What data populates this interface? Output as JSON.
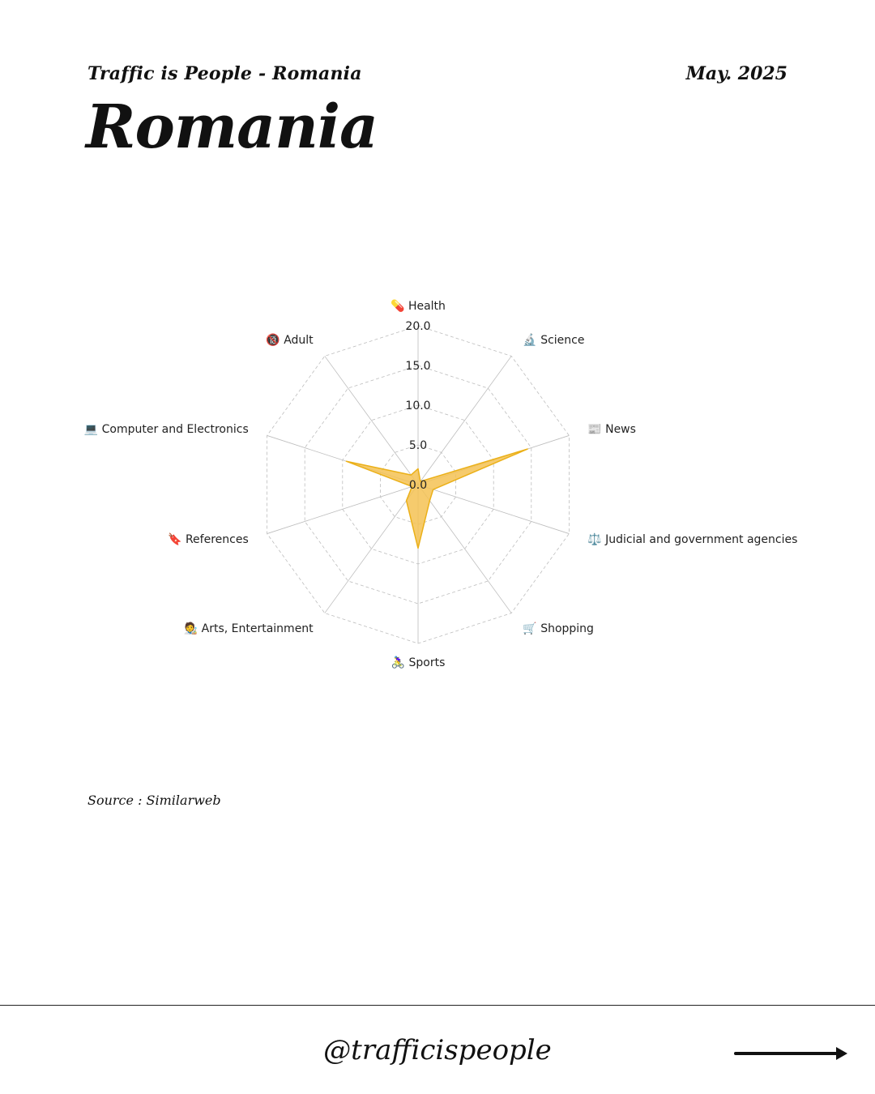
{
  "header": {
    "series": "Traffic is People - Romania",
    "date": "May. 2025"
  },
  "title": "Romania",
  "source": "Source : Similarweb",
  "footer": {
    "handle": "@trafficispeople",
    "arrow_icon": "arrow-right-icon"
  },
  "colors": {
    "fill": "#F5C254",
    "stroke": "#EBB018",
    "grid": "#BDBDBD"
  },
  "chart_data": {
    "type": "radar",
    "categories": [
      "💊 Health",
      "🔬 Science",
      "📰 News",
      "⚖️ Judicial and government agencies",
      "🛒 Shopping",
      "🚴‍♀️ Sports",
      "🧑‍🎨 Arts, Entertainment",
      "🔖 References",
      "💻 Computer and Electronics",
      "🔞 Adult"
    ],
    "values": [
      2.0,
      0.5,
      14.5,
      2.0,
      2.5,
      8.0,
      2.5,
      0.8,
      9.5,
      1.5
    ],
    "ticks": [
      "0.0",
      "5.0",
      "10.0",
      "15.0",
      "20.0"
    ],
    "rmax": 20,
    "grid": true,
    "legend": false
  }
}
